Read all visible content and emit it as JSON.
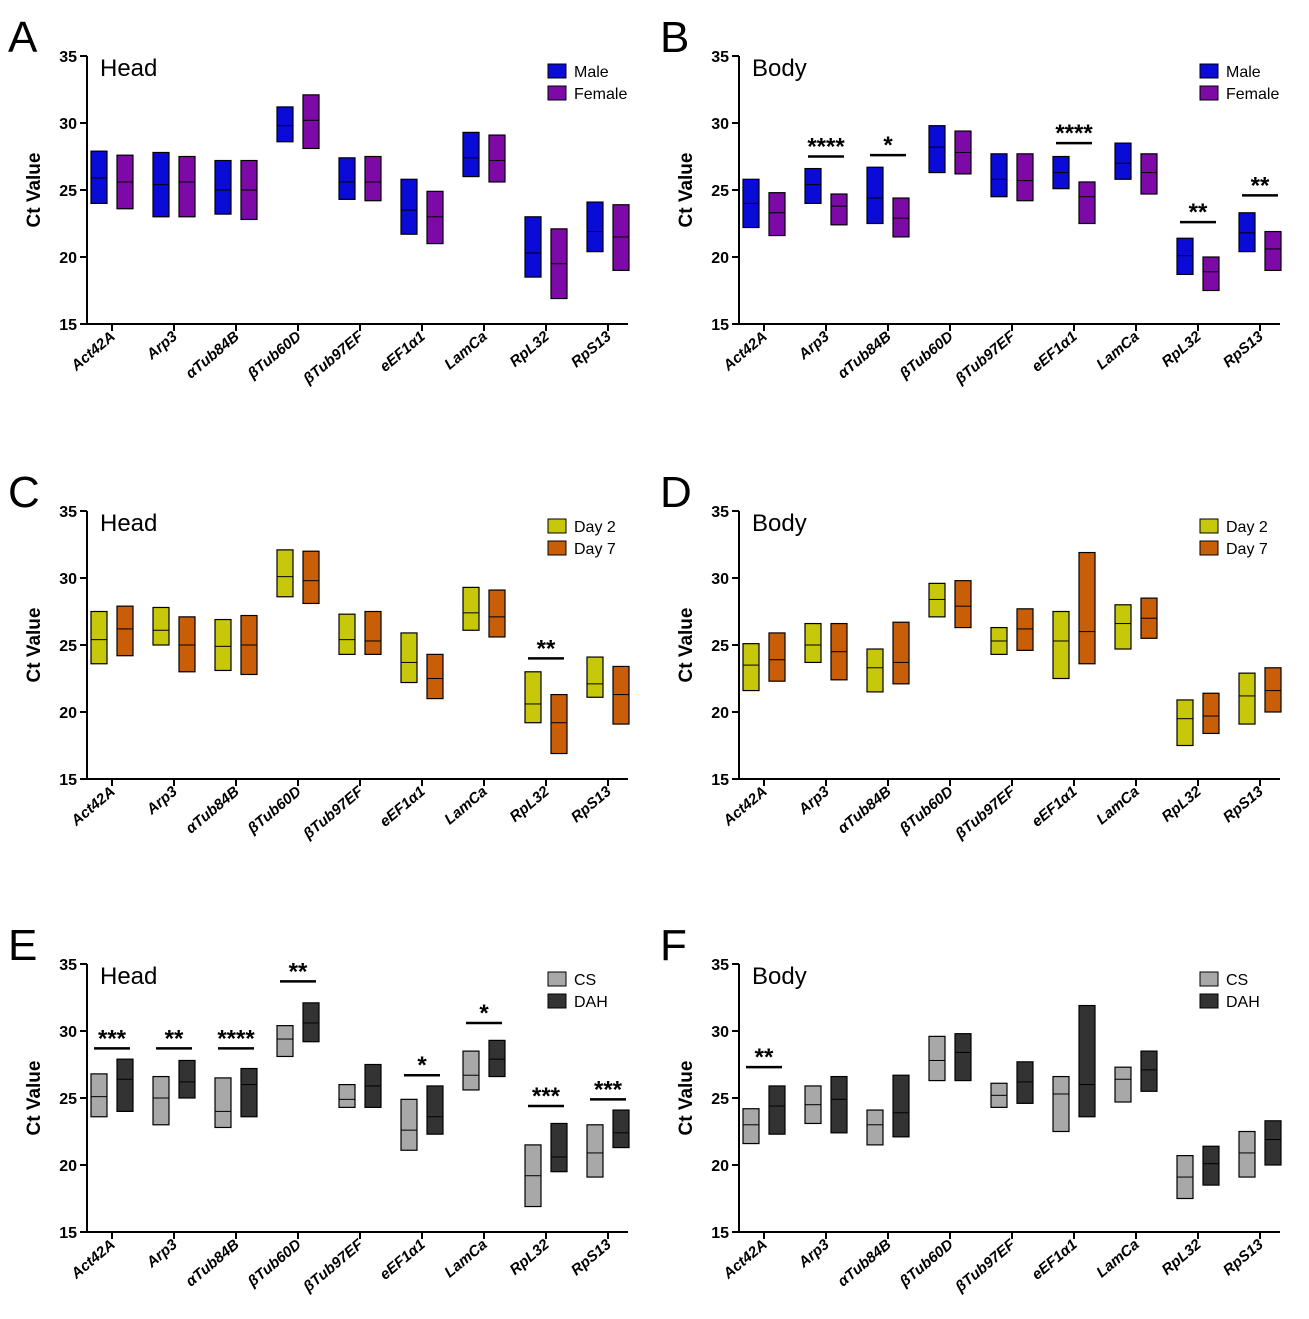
{
  "chart_data": [
    {
      "panel": "A",
      "title": "Head",
      "type": "box",
      "ylabel": "Ct Value",
      "ylim": [
        15,
        35
      ],
      "yticks": [
        "15",
        "20",
        "25",
        "30",
        "35"
      ],
      "categories": [
        "Act42A",
        "Arp3",
        "αTub84B",
        "βTub60D",
        "βTub97EF",
        "eEF1α1",
        "LamCa",
        "RpL32",
        "RpS13"
      ],
      "colors": [
        "#0b0bd8",
        "#7d0aa6"
      ],
      "series": [
        {
          "name": "Male",
          "boxes": [
            [
              24.0,
              25.9,
              27.9
            ],
            [
              23.0,
              25.4,
              27.8
            ],
            [
              23.2,
              25.0,
              27.2
            ],
            [
              28.6,
              29.8,
              31.2
            ],
            [
              24.3,
              25.6,
              27.4
            ],
            [
              21.7,
              23.5,
              25.8
            ],
            [
              26.0,
              27.4,
              29.3
            ],
            [
              18.5,
              20.3,
              23.0
            ],
            [
              20.4,
              21.9,
              24.1
            ]
          ]
        },
        {
          "name": "Female",
          "boxes": [
            [
              23.6,
              25.6,
              27.6
            ],
            [
              23.0,
              25.6,
              27.5
            ],
            [
              22.8,
              25.0,
              27.2
            ],
            [
              28.1,
              30.2,
              32.1
            ],
            [
              24.2,
              25.6,
              27.5
            ],
            [
              21.0,
              23.0,
              24.9
            ],
            [
              25.6,
              27.2,
              29.1
            ],
            [
              16.9,
              19.5,
              22.1
            ],
            [
              19.0,
              21.5,
              23.9
            ]
          ]
        }
      ],
      "significance": []
    },
    {
      "panel": "B",
      "title": "Body",
      "type": "box",
      "ylabel": "Ct Value",
      "ylim": [
        15,
        35
      ],
      "yticks": [
        "15",
        "20",
        "25",
        "30",
        "35"
      ],
      "categories": [
        "Act42A",
        "Arp3",
        "αTub84B",
        "βTub60D",
        "βTub97EF",
        "eEF1α1",
        "LamCa",
        "RpL32",
        "RpS13"
      ],
      "colors": [
        "#0b0bd8",
        "#7d0aa6"
      ],
      "series": [
        {
          "name": "Male",
          "boxes": [
            [
              22.2,
              24.0,
              25.8
            ],
            [
              24.0,
              25.4,
              26.6
            ],
            [
              22.5,
              24.4,
              26.7
            ],
            [
              26.3,
              28.2,
              29.8
            ],
            [
              24.5,
              25.8,
              27.7
            ],
            [
              25.1,
              26.3,
              27.5
            ],
            [
              25.8,
              27.0,
              28.5
            ],
            [
              18.7,
              20.1,
              21.4
            ],
            [
              20.4,
              21.8,
              23.3
            ]
          ]
        },
        {
          "name": "Female",
          "boxes": [
            [
              21.6,
              23.3,
              24.8
            ],
            [
              22.4,
              23.8,
              24.7
            ],
            [
              21.5,
              22.9,
              24.4
            ],
            [
              26.2,
              27.8,
              29.4
            ],
            [
              24.2,
              25.7,
              27.7
            ],
            [
              22.5,
              24.5,
              25.6
            ],
            [
              24.7,
              26.3,
              27.7
            ],
            [
              17.5,
              18.9,
              20.0
            ],
            [
              19.0,
              20.6,
              21.9
            ]
          ]
        }
      ],
      "significance": [
        {
          "category": "Arp3",
          "label": "****",
          "y": 27.5
        },
        {
          "category": "αTub84B",
          "label": "*",
          "y": 27.6
        },
        {
          "category": "eEF1α1",
          "label": "****",
          "y": 28.5
        },
        {
          "category": "RpL32",
          "label": "**",
          "y": 22.6
        },
        {
          "category": "RpS13",
          "label": "**",
          "y": 24.6
        }
      ]
    },
    {
      "panel": "C",
      "title": "Head",
      "type": "box",
      "ylabel": "Ct Value",
      "ylim": [
        15,
        35
      ],
      "yticks": [
        "15",
        "20",
        "25",
        "30",
        "35"
      ],
      "categories": [
        "Act42A",
        "Arp3",
        "αTub84B",
        "βTub60D",
        "βTub97EF",
        "eEF1α1",
        "LamCa",
        "RpL32",
        "RpS13"
      ],
      "colors": [
        "#c8c80a",
        "#c85f08"
      ],
      "series": [
        {
          "name": "Day 2",
          "boxes": [
            [
              23.6,
              25.4,
              27.5
            ],
            [
              25.0,
              26.1,
              27.8
            ],
            [
              23.1,
              24.9,
              26.9
            ],
            [
              28.6,
              30.1,
              32.1
            ],
            [
              24.3,
              25.4,
              27.3
            ],
            [
              22.2,
              23.7,
              25.9
            ],
            [
              26.1,
              27.4,
              29.3
            ],
            [
              19.2,
              20.6,
              23.0
            ],
            [
              21.1,
              22.1,
              24.1
            ]
          ]
        },
        {
          "name": "Day 7",
          "boxes": [
            [
              24.2,
              26.2,
              27.9
            ],
            [
              23.0,
              25.0,
              27.1
            ],
            [
              22.8,
              25.0,
              27.2
            ],
            [
              28.1,
              29.8,
              32.0
            ],
            [
              24.3,
              25.3,
              27.5
            ],
            [
              21.0,
              22.5,
              24.3
            ],
            [
              25.6,
              27.1,
              29.1
            ],
            [
              16.9,
              19.2,
              21.3
            ],
            [
              19.1,
              21.3,
              23.4
            ]
          ]
        }
      ],
      "significance": [
        {
          "category": "RpL32",
          "label": "**",
          "y": 24.0
        }
      ]
    },
    {
      "panel": "D",
      "title": "Body",
      "type": "box",
      "ylabel": "Ct Value",
      "ylim": [
        15,
        35
      ],
      "yticks": [
        "15",
        "20",
        "25",
        "30",
        "35"
      ],
      "categories": [
        "Act42A",
        "Arp3",
        "αTub84B",
        "βTub60D",
        "βTub97EF",
        "eEF1α1",
        "LamCa",
        "RpL32",
        "RpS13"
      ],
      "colors": [
        "#c8c80a",
        "#c85f08"
      ],
      "series": [
        {
          "name": "Day 2",
          "boxes": [
            [
              21.6,
              23.5,
              25.1
            ],
            [
              23.7,
              25.0,
              26.6
            ],
            [
              21.5,
              23.3,
              24.7
            ],
            [
              27.1,
              28.4,
              29.6
            ],
            [
              24.3,
              25.3,
              26.3
            ],
            [
              22.5,
              25.3,
              27.5
            ],
            [
              24.7,
              26.6,
              28.0
            ],
            [
              17.5,
              19.5,
              20.9
            ],
            [
              19.1,
              21.2,
              22.9
            ]
          ]
        },
        {
          "name": "Day 7",
          "boxes": [
            [
              22.3,
              23.9,
              25.9
            ],
            [
              22.4,
              24.5,
              26.6
            ],
            [
              22.1,
              23.7,
              26.7
            ],
            [
              26.3,
              27.9,
              29.8
            ],
            [
              24.6,
              26.2,
              27.7
            ],
            [
              23.6,
              26.0,
              31.9
            ],
            [
              25.5,
              27.0,
              28.5
            ],
            [
              18.4,
              19.7,
              21.4
            ],
            [
              20.0,
              21.6,
              23.3
            ]
          ]
        }
      ],
      "significance": []
    },
    {
      "panel": "E",
      "title": "Head",
      "type": "box",
      "ylabel": "Ct Value",
      "ylim": [
        15,
        35
      ],
      "yticks": [
        "15",
        "20",
        "25",
        "30",
        "35"
      ],
      "categories": [
        "Act42A",
        "Arp3",
        "αTub84B",
        "βTub60D",
        "βTub97EF",
        "eEF1α1",
        "LamCa",
        "RpL32",
        "RpS13"
      ],
      "colors": [
        "#a8a8a8",
        "#333333"
      ],
      "series": [
        {
          "name": "CS",
          "boxes": [
            [
              23.6,
              25.1,
              26.8
            ],
            [
              23.0,
              25.0,
              26.6
            ],
            [
              22.8,
              24.0,
              26.5
            ],
            [
              28.1,
              29.4,
              30.4
            ],
            [
              24.3,
              24.9,
              26.0
            ],
            [
              21.1,
              22.6,
              24.9
            ],
            [
              25.6,
              26.7,
              28.5
            ],
            [
              16.9,
              19.2,
              21.5
            ],
            [
              19.1,
              20.9,
              23.0
            ]
          ]
        },
        {
          "name": "DAH",
          "boxes": [
            [
              24.0,
              26.4,
              27.9
            ],
            [
              25.0,
              26.2,
              27.8
            ],
            [
              23.6,
              26.0,
              27.2
            ],
            [
              29.2,
              30.6,
              32.1
            ],
            [
              24.3,
              25.9,
              27.5
            ],
            [
              22.3,
              23.6,
              25.9
            ],
            [
              26.6,
              27.9,
              29.3
            ],
            [
              19.5,
              20.6,
              23.1
            ],
            [
              21.3,
              22.4,
              24.1
            ]
          ]
        }
      ],
      "significance": [
        {
          "category": "Act42A",
          "label": "***",
          "y": 28.7
        },
        {
          "category": "Arp3",
          "label": "**",
          "y": 28.7
        },
        {
          "category": "αTub84B",
          "label": "****",
          "y": 28.7
        },
        {
          "category": "βTub60D",
          "label": "**",
          "y": 33.7
        },
        {
          "category": "eEF1α1",
          "label": "*",
          "y": 26.7
        },
        {
          "category": "LamCa",
          "label": "*",
          "y": 30.6
        },
        {
          "category": "RpL32",
          "label": "***",
          "y": 24.4
        },
        {
          "category": "RpS13",
          "label": "***",
          "y": 24.9
        }
      ]
    },
    {
      "panel": "F",
      "title": "Body",
      "type": "box",
      "ylabel": "Ct Value",
      "ylim": [
        15,
        35
      ],
      "yticks": [
        "15",
        "20",
        "25",
        "30",
        "35"
      ],
      "categories": [
        "Act42A",
        "Arp3",
        "αTub84B",
        "βTub60D",
        "βTub97EF",
        "eEF1α1",
        "LamCa",
        "RpL32",
        "RpS13"
      ],
      "colors": [
        "#a8a8a8",
        "#333333"
      ],
      "series": [
        {
          "name": "CS",
          "boxes": [
            [
              21.6,
              23.0,
              24.2
            ],
            [
              23.1,
              24.5,
              25.9
            ],
            [
              21.5,
              23.0,
              24.1
            ],
            [
              26.3,
              27.8,
              29.6
            ],
            [
              24.3,
              25.2,
              26.1
            ],
            [
              22.5,
              25.3,
              26.6
            ],
            [
              24.7,
              26.4,
              27.3
            ],
            [
              17.5,
              19.1,
              20.7
            ],
            [
              19.1,
              20.9,
              22.5
            ]
          ]
        },
        {
          "name": "DAH",
          "boxes": [
            [
              22.3,
              24.4,
              25.9
            ],
            [
              22.4,
              24.9,
              26.6
            ],
            [
              22.1,
              23.9,
              26.7
            ],
            [
              26.3,
              28.4,
              29.8
            ],
            [
              24.6,
              26.2,
              27.7
            ],
            [
              23.6,
              26.0,
              31.9
            ],
            [
              25.5,
              27.1,
              28.5
            ],
            [
              18.5,
              20.1,
              21.4
            ],
            [
              20.0,
              21.9,
              23.3
            ]
          ]
        }
      ],
      "significance": [
        {
          "category": "Act42A",
          "label": "**",
          "y": 27.3
        }
      ]
    }
  ]
}
